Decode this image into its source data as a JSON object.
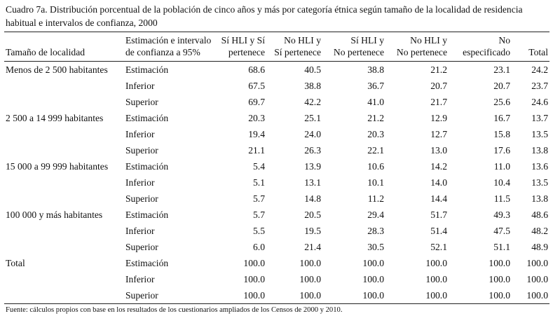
{
  "title_line1": "Cuadro 7a. Distribución porcentual de la población de cinco años y más por categoría étnica según tamaño de la localidad de residencia",
  "title_line2": "habitual e intervalos de confianza, 2000",
  "headers": {
    "col1": "Tamaño de localidad",
    "col2_l1": "Estimación e intervalo",
    "col2_l2": "de confianza a 95%",
    "col3_l1": "Sí HLI y Sí",
    "col3_l2": "pertenece",
    "col4_l1": "No HLI y",
    "col4_l2": "Sí pertenece",
    "col5_l1": "Sí HLI y",
    "col5_l2": "No pertenece",
    "col6_l1": "No HLI y",
    "col6_l2": "No pertenece",
    "col7_l1": "No",
    "col7_l2": "especificado",
    "col8": "Total"
  },
  "groups": [
    {
      "label": "Menos de 2 500 habitantes",
      "rows": [
        {
          "type": "Estimación",
          "values": [
            "68.6",
            "40.5",
            "38.8",
            "21.2",
            "23.1",
            "24.2"
          ]
        },
        {
          "type": "Inferior",
          "values": [
            "67.5",
            "38.8",
            "36.7",
            "20.7",
            "20.7",
            "23.7"
          ]
        },
        {
          "type": "Superior",
          "values": [
            "69.7",
            "42.2",
            "41.0",
            "21.7",
            "25.6",
            "24.6"
          ]
        }
      ]
    },
    {
      "label": "2 500 a 14 999 habitantes",
      "rows": [
        {
          "type": "Estimación",
          "values": [
            "20.3",
            "25.1",
            "21.2",
            "12.9",
            "16.7",
            "13.7"
          ]
        },
        {
          "type": "Inferior",
          "values": [
            "19.4",
            "24.0",
            "20.3",
            "12.7",
            "15.8",
            "13.5"
          ]
        },
        {
          "type": "Superior",
          "values": [
            "21.1",
            "26.3",
            "22.1",
            "13.0",
            "17.6",
            "13.8"
          ]
        }
      ]
    },
    {
      "label": "15 000 a 99 999 habitantes",
      "rows": [
        {
          "type": "Estimación",
          "values": [
            "5.4",
            "13.9",
            "10.6",
            "14.2",
            "11.0",
            "13.6"
          ]
        },
        {
          "type": "Inferior",
          "values": [
            "5.1",
            "13.1",
            "10.1",
            "14.0",
            "10.4",
            "13.5"
          ]
        },
        {
          "type": "Superior",
          "values": [
            "5.7",
            "14.8",
            "11.2",
            "14.4",
            "11.5",
            "13.8"
          ]
        }
      ]
    },
    {
      "label": "100 000 y más habitantes",
      "rows": [
        {
          "type": "Estimación",
          "values": [
            "5.7",
            "20.5",
            "29.4",
            "51.7",
            "49.3",
            "48.6"
          ]
        },
        {
          "type": "Inferior",
          "values": [
            "5.5",
            "19.5",
            "28.3",
            "51.4",
            "47.5",
            "48.2"
          ]
        },
        {
          "type": "Superior",
          "values": [
            "6.0",
            "21.4",
            "30.5",
            "52.1",
            "51.1",
            "48.9"
          ]
        }
      ]
    },
    {
      "label": "Total",
      "rows": [
        {
          "type": "Estimación",
          "values": [
            "100.0",
            "100.0",
            "100.0",
            "100.0",
            "100.0",
            "100.0"
          ]
        },
        {
          "type": "Inferior",
          "values": [
            "100.0",
            "100.0",
            "100.0",
            "100.0",
            "100.0",
            "100.0"
          ]
        },
        {
          "type": "Superior",
          "values": [
            "100.0",
            "100.0",
            "100.0",
            "100.0",
            "100.0",
            "100.0"
          ]
        }
      ]
    }
  ],
  "footer": "Fuente: cálculos propios con base en los resultados de los cuestionarios ampliados de los Censos de 2000 y 2010."
}
